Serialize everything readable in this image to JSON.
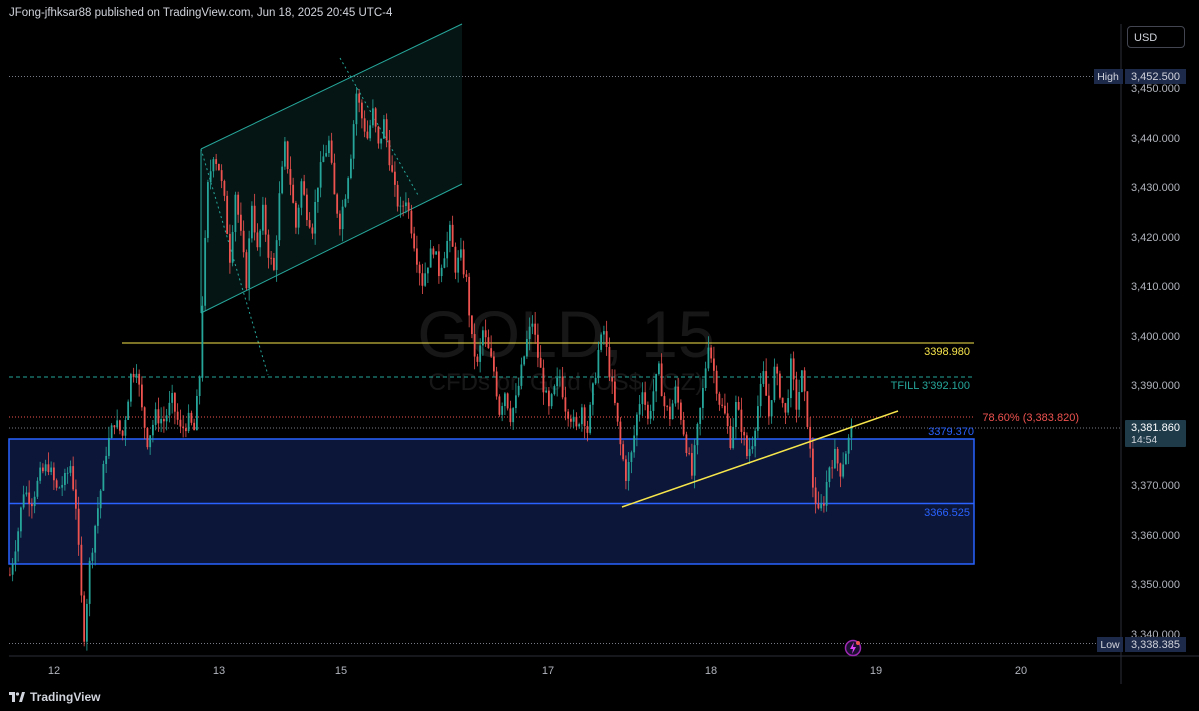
{
  "header": {
    "published_text": "JFong-jfhksar88 published on TradingView.com, Jun 18, 2025 20:45 UTC-4"
  },
  "currency_button": "USD",
  "watermark": {
    "symbol": "GOLD, 15",
    "description": "CFDs on Gold (US$ / OZ)"
  },
  "footer": {
    "logo_text": "TradingView"
  },
  "colors": {
    "background": "#000000",
    "candle_up": "#26a69a",
    "candle_down": "#ef5350",
    "channel": "#26a69a",
    "zone_border": "#2962ff",
    "zone_fill": "#0c1638",
    "resistance_line": "#f7e54c",
    "fib_line": "#ef5350",
    "tfill_line": "#26a69a",
    "trendline": "#f7e54c"
  },
  "chart_data": {
    "type": "candlestick",
    "timeframe": "15",
    "symbol": "GOLD",
    "x_tick_labels": [
      "12",
      "13",
      "15",
      "17",
      "18",
      "19",
      "20"
    ],
    "y_tick_labels": [
      "3,450.000",
      "3,440.000",
      "3,430.000",
      "3,420.000",
      "3,410.000",
      "3,400.000",
      "3,390.000",
      "3,370.000",
      "3,360.000",
      "3,350.000",
      "3,340.000"
    ],
    "ylim": [
      3338,
      3464
    ],
    "high": {
      "label": "High",
      "value": "3,452.500"
    },
    "low": {
      "label": "Low",
      "value": "3,338.385"
    },
    "current_price": {
      "value": "3,381.860",
      "countdown": "14:54"
    },
    "levels": [
      {
        "name": "resistance",
        "value": 3398.98,
        "label": "3398.980"
      },
      {
        "name": "tfill",
        "value": 3392.1,
        "label": "TFILL 3'392.100"
      },
      {
        "name": "fib",
        "value": 3383.82,
        "label": "78.60% (3,383.820)"
      },
      {
        "name": "zone-top",
        "value": 3379.37,
        "label": "3379.370"
      },
      {
        "name": "zone-mid",
        "value": 3366.525,
        "label": "3366.525"
      },
      {
        "name": "zone-bottom",
        "value": 3354.2,
        "label": ""
      }
    ],
    "price_path": [
      [
        0,
        3352
      ],
      [
        3,
        3361
      ],
      [
        5,
        3369
      ],
      [
        8,
        3367
      ],
      [
        11,
        3372
      ],
      [
        14,
        3374
      ],
      [
        17,
        3369
      ],
      [
        20,
        3371
      ],
      [
        22,
        3374
      ],
      [
        24,
        3366
      ],
      [
        26,
        3347
      ],
      [
        27,
        3340
      ],
      [
        29,
        3354
      ],
      [
        31,
        3362
      ],
      [
        33,
        3369
      ],
      [
        35,
        3377
      ],
      [
        38,
        3383
      ],
      [
        41,
        3380
      ],
      [
        44,
        3392
      ],
      [
        46,
        3394
      ],
      [
        48,
        3385
      ],
      [
        50,
        3379
      ],
      [
        53,
        3384
      ],
      [
        56,
        3383
      ],
      [
        59,
        3387
      ],
      [
        62,
        3381
      ],
      [
        65,
        3383
      ],
      [
        67,
        3381
      ],
      [
        69,
        3392
      ],
      [
        70,
        3407
      ],
      [
        72,
        3430
      ],
      [
        74,
        3437
      ],
      [
        76,
        3434
      ],
      [
        78,
        3427
      ],
      [
        80,
        3416
      ],
      [
        82,
        3429
      ],
      [
        84,
        3420
      ],
      [
        86,
        3411
      ],
      [
        88,
        3427
      ],
      [
        90,
        3417
      ],
      [
        92,
        3425
      ],
      [
        94,
        3417
      ],
      [
        96,
        3413
      ],
      [
        98,
        3428
      ],
      [
        100,
        3438
      ],
      [
        102,
        3431
      ],
      [
        104,
        3422
      ],
      [
        106,
        3431
      ],
      [
        108,
        3425
      ],
      [
        110,
        3422
      ],
      [
        112,
        3431
      ],
      [
        114,
        3436
      ],
      [
        116,
        3439
      ],
      [
        118,
        3428
      ],
      [
        120,
        3423
      ],
      [
        122,
        3429
      ],
      [
        124,
        3437
      ],
      [
        126,
        3449
      ],
      [
        128,
        3444
      ],
      [
        130,
        3440
      ],
      [
        132,
        3445
      ],
      [
        134,
        3438
      ],
      [
        136,
        3443
      ],
      [
        138,
        3436
      ],
      [
        140,
        3429
      ],
      [
        142,
        3425
      ],
      [
        144,
        3428
      ],
      [
        146,
        3422
      ],
      [
        148,
        3416
      ],
      [
        150,
        3411
      ],
      [
        152,
        3415
      ],
      [
        154,
        3418
      ],
      [
        156,
        3413
      ],
      [
        158,
        3417
      ],
      [
        160,
        3421
      ],
      [
        162,
        3414
      ],
      [
        164,
        3416
      ],
      [
        166,
        3411
      ],
      [
        168,
        3399
      ],
      [
        170,
        3394
      ],
      [
        172,
        3401
      ],
      [
        174,
        3397
      ],
      [
        176,
        3393
      ],
      [
        178,
        3385
      ],
      [
        180,
        3389
      ],
      [
        182,
        3384
      ],
      [
        184,
        3387
      ],
      [
        186,
        3393
      ],
      [
        188,
        3399
      ],
      [
        190,
        3403
      ],
      [
        192,
        3396
      ],
      [
        194,
        3390
      ],
      [
        196,
        3385
      ],
      [
        198,
        3389
      ],
      [
        200,
        3392
      ],
      [
        202,
        3386
      ],
      [
        204,
        3384
      ],
      [
        206,
        3381
      ],
      [
        208,
        3386
      ],
      [
        210,
        3381
      ],
      [
        212,
        3389
      ],
      [
        214,
        3397
      ],
      [
        216,
        3401
      ],
      [
        218,
        3393
      ],
      [
        220,
        3386
      ],
      [
        222,
        3378
      ],
      [
        224,
        3372
      ],
      [
        226,
        3376
      ],
      [
        228,
        3384
      ],
      [
        230,
        3390
      ],
      [
        232,
        3383
      ],
      [
        234,
        3389
      ],
      [
        236,
        3393
      ],
      [
        238,
        3386
      ],
      [
        240,
        3384
      ],
      [
        242,
        3389
      ],
      [
        244,
        3384
      ],
      [
        246,
        3378
      ],
      [
        248,
        3372
      ],
      [
        250,
        3381
      ],
      [
        252,
        3389
      ],
      [
        254,
        3399
      ],
      [
        256,
        3393
      ],
      [
        258,
        3387
      ],
      [
        260,
        3384
      ],
      [
        262,
        3379
      ],
      [
        264,
        3386
      ],
      [
        266,
        3382
      ],
      [
        268,
        3376
      ],
      [
        270,
        3379
      ],
      [
        272,
        3386
      ],
      [
        274,
        3392
      ],
      [
        276,
        3384
      ],
      [
        278,
        3393
      ],
      [
        280,
        3389
      ],
      [
        282,
        3384
      ],
      [
        284,
        3394
      ],
      [
        286,
        3386
      ],
      [
        288,
        3392
      ],
      [
        290,
        3383
      ],
      [
        292,
        3370
      ],
      [
        294,
        3364
      ],
      [
        296,
        3367
      ],
      [
        298,
        3374
      ],
      [
        300,
        3376
      ],
      [
        302,
        3373
      ],
      [
        304,
        3377
      ],
      [
        306,
        3381
      ]
    ]
  }
}
